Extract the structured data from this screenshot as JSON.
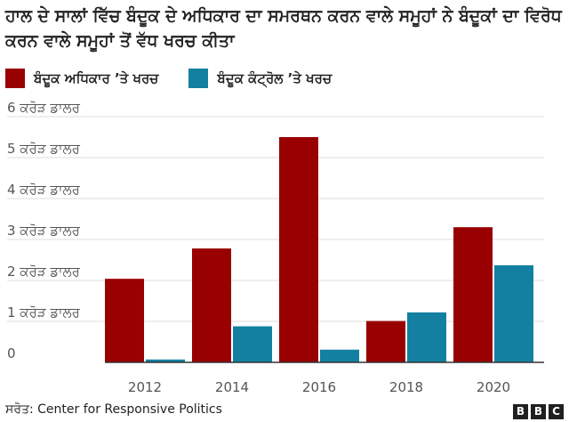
{
  "title": "ਹਾਲ ਦੇ ਸਾਲਾਂ ਵਿੱਚ ਬੰਦੂਕ ਦੇ ਅਧਿਕਾਰ ਦਾ ਸਮਰਥਨ ਕਰਨ ਵਾਲੇ ਸਮੂਹਾਂ ਨੇ ਬੰਦੂਕਾਂ ਦਾ ਵਿਰੋਧ ਕਰਨ ਵਾਲੇ ਸਮੂਹਾਂ ਤੋਂ ਵੱਧ ਖਰਚ ਕੀਤਾ",
  "source": "ਸਰੋਤ: Center for Responsive Politics",
  "logo": [
    "B",
    "B",
    "C"
  ],
  "chart_data": {
    "type": "bar",
    "title": "ਹਾਲ ਦੇ ਸਾਲਾਂ ਵਿੱਚ ਬੰਦੂਕ ਦੇ ਅਧਿਕਾਰ ਦਾ ਸਮਰਥਨ ਕਰਨ ਵਾਲੇ ਸਮੂਹਾਂ ਨੇ ਬੰਦੂਕਾਂ ਦਾ ਵਿਰੋਧ ਕਰਨ ਵਾਲੇ ਸਮੂਹਾਂ ਤੋਂ ਵੱਧ ਖਰਚ ਕੀਤਾ",
    "categories": [
      "2012",
      "2014",
      "2016",
      "2018",
      "2020"
    ],
    "series": [
      {
        "name": "ਬੰਦੂਕ ਅਧਿਕਾਰ ’ਤੇ ਖਰਚ",
        "color": "#990000",
        "values": [
          2.04,
          2.78,
          5.5,
          1.01,
          3.3
        ]
      },
      {
        "name": "ਬੰਦੂਕ ਕੰਟ੍ਰੋਲ ’ਤੇ ਖਰਚ",
        "color": "#1380A1",
        "values": [
          0.07,
          0.88,
          0.31,
          1.22,
          2.37
        ]
      }
    ],
    "ylim": [
      0,
      6
    ],
    "yticks": [
      {
        "value": 0,
        "label": "0"
      },
      {
        "value": 1,
        "label": "1 ਕਰੋੜ ਡਾਲਰ"
      },
      {
        "value": 2,
        "label": "2 ਕਰੋੜ ਡਾਲਰ"
      },
      {
        "value": 3,
        "label": "3 ਕਰੋੜ ਡਾਲਰ"
      },
      {
        "value": 4,
        "label": "4 ਕਰੋੜ ਡਾਲਰ"
      },
      {
        "value": 5,
        "label": "5 ਕਰੋੜ ਡਾਲਰ"
      },
      {
        "value": 6,
        "label": "6 ਕਰੋੜ ਡਾਲਰ"
      }
    ],
    "xlabel": "",
    "ylabel": "",
    "grid": true,
    "legend_position": "top-left"
  }
}
